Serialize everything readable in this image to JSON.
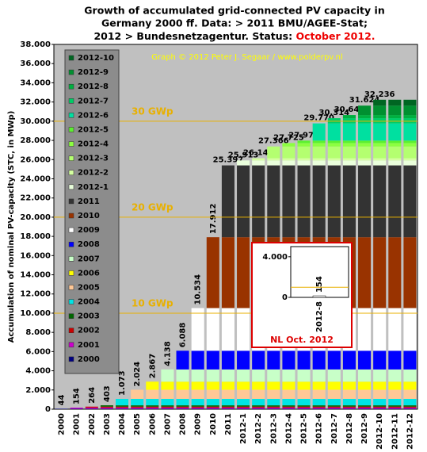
{
  "chart_data": {
    "type": "stacked_bar",
    "title_lines": [
      "Growth of accumulated grid-connected PV capacity in",
      "Germany 2000 ff. Data: > 2011 BMU/AGEE-Stat;",
      "2012 > Bundesnetzagentur.  Status: "
    ],
    "status": "October 2012.",
    "credit": "Graph © 2012 Peter J. Segaar / www.polderpv.nl",
    "y_label": "Accumulation of nominal PV-capacity (STC, in MWp)",
    "categories": [
      "2000",
      "2001",
      "2002",
      "2003",
      "2004",
      "2005",
      "2006",
      "2007",
      "2008",
      "2009",
      "2010",
      "2011",
      "2012-1",
      "2012-2",
      "2012-3",
      "2012-4",
      "2012-5",
      "2012-6",
      "2012-7",
      "2012-8",
      "2012-9",
      "2012-10",
      "2012-11",
      "2012-12"
    ],
    "values": [
      44,
      154,
      264,
      403,
      1073,
      2024,
      2867,
      4138,
      6088,
      10534,
      17912,
      25397,
      25913,
      26143,
      27366,
      27725,
      27979,
      29770,
      30314,
      30643,
      31624,
      32236,
      null,
      null
    ],
    "value_labels": [
      "44",
      "154",
      "264",
      "403",
      "1.073",
      "2.024",
      "2.867",
      "4.138",
      "6.088",
      "10.534",
      "17.912",
      "25.397",
      "25.913",
      "26.143",
      "27.366",
      "27.725",
      "27.979",
      "29.770",
      "30.314",
      "30.643",
      "31.624",
      "32.236",
      null,
      null
    ],
    "series": [
      {
        "name": "2000",
        "color": "#000080",
        "value": 44
      },
      {
        "name": "2001",
        "color": "#cc00cc",
        "value": 110
      },
      {
        "name": "2002",
        "color": "#cc0000",
        "value": 110
      },
      {
        "name": "2003",
        "color": "#006600",
        "value": 139
      },
      {
        "name": "2004",
        "color": "#00e5e5",
        "value": 670
      },
      {
        "name": "2005",
        "color": "#ffc896",
        "value": 951
      },
      {
        "name": "2006",
        "color": "#ffff00",
        "value": 843
      },
      {
        "name": "2007",
        "color": "#c8ffc8",
        "value": 1271
      },
      {
        "name": "2008",
        "color": "#0000ff",
        "value": 1950
      },
      {
        "name": "2009",
        "color": "#ffffff",
        "value": 4446
      },
      {
        "name": "2010",
        "color": "#993300",
        "value": 7378
      },
      {
        "name": "2011",
        "color": "#333333",
        "value": 7485
      },
      {
        "name": "2012-1",
        "color": "#eaffdc",
        "value": 516
      },
      {
        "name": "2012-2",
        "color": "#d4ffa0",
        "value": 230
      },
      {
        "name": "2012-3",
        "color": "#b4ff70",
        "value": 1223
      },
      {
        "name": "2012-4",
        "color": "#8cff40",
        "value": 359
      },
      {
        "name": "2012-5",
        "color": "#5cf030",
        "value": 254
      },
      {
        "name": "2012-6",
        "color": "#00e0a0",
        "value": 1791
      },
      {
        "name": "2012-7",
        "color": "#00cc66",
        "value": 544
      },
      {
        "name": "2012-8",
        "color": "#00b040",
        "value": 329
      },
      {
        "name": "2012-9",
        "color": "#009030",
        "value": 981
      },
      {
        "name": "2012-10",
        "color": "#006622",
        "value": 612
      }
    ],
    "ylim": [
      0,
      38000
    ],
    "yticks": [
      0,
      {
        "value": 2000,
        "label": "2.000"
      },
      {
        "value": 4000,
        "label": "4.000"
      },
      {
        "value": 6000,
        "label": "6.000"
      },
      {
        "value": 8000,
        "label": "8.000"
      },
      {
        "value": 10000,
        "label": "10.000"
      },
      {
        "value": 12000,
        "label": "12.000"
      },
      {
        "value": 14000,
        "label": "14.000"
      },
      {
        "value": 16000,
        "label": "16.000"
      },
      {
        "value": 18000,
        "label": "18.000"
      },
      {
        "value": 20000,
        "label": "20.000"
      },
      {
        "value": 22000,
        "label": "22.000"
      },
      {
        "value": 24000,
        "label": "24.000"
      },
      {
        "value": 26000,
        "label": "26.000"
      },
      {
        "value": 28000,
        "label": "28.000"
      },
      {
        "value": 30000,
        "label": "30.000"
      },
      {
        "value": 32000,
        "label": "32.000"
      },
      {
        "value": 34000,
        "label": "34.000"
      },
      {
        "value": 36000,
        "label": "36.000"
      },
      {
        "value": 38000,
        "label": "38.000"
      }
    ],
    "reference_lines": [
      {
        "value": 10000,
        "label": "10 GWp"
      },
      {
        "value": 20000,
        "label": "20 GWp"
      },
      {
        "value": 30000,
        "label": "30 GWp"
      }
    ],
    "reference_color": "#e8b000",
    "grid": false,
    "inset": {
      "title": "NL Oct. 2012",
      "categories": [
        "2012-8"
      ],
      "values": [
        154
      ],
      "color": "#ffffff",
      "ylim": [
        0,
        5000
      ],
      "yticks": [
        0,
        {
          "value": 4000,
          "label": "4.000"
        }
      ],
      "reference_lines": [
        {
          "value": 1000
        }
      ]
    }
  }
}
